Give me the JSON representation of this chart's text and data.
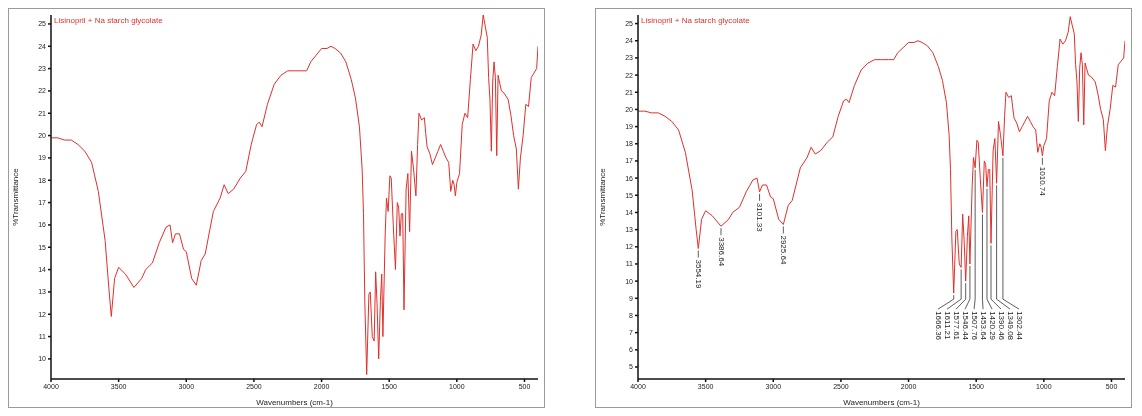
{
  "chart_data": [
    {
      "type": "line",
      "title": "Lisinopril + Na starch glycolate",
      "xlabel": "Wavenumbers (cm-1)",
      "ylabel": "%Transmittance",
      "x": [
        4000,
        3950,
        3900,
        3850,
        3800,
        3750,
        3700,
        3650,
        3600,
        3570,
        3554.19,
        3530,
        3500,
        3450,
        3386.64,
        3330,
        3300,
        3250,
        3200,
        3150,
        3120,
        3101.33,
        3080,
        3050,
        3020,
        3000,
        2960,
        2925.64,
        2890,
        2860,
        2800,
        2750,
        2720,
        2690,
        2650,
        2600,
        2560,
        2520,
        2480,
        2460,
        2440,
        2400,
        2350,
        2300,
        2250,
        2200,
        2150,
        2110,
        2080,
        2040,
        2000,
        1960,
        1930,
        1900,
        1860,
        1820,
        1780,
        1750,
        1720,
        1700,
        1690,
        1680,
        1666.36,
        1650,
        1640,
        1625,
        1611.21,
        1600,
        1590,
        1577.61,
        1565,
        1555,
        1546.44,
        1530,
        1520,
        1507.76,
        1495,
        1485,
        1470,
        1453.64,
        1440,
        1430,
        1420.29,
        1410,
        1400,
        1390.46,
        1375,
        1362,
        1349.08,
        1335,
        1320,
        1302.44,
        1290,
        1280,
        1260,
        1240,
        1230,
        1220,
        1200,
        1180,
        1160,
        1140,
        1120,
        1100,
        1080,
        1060,
        1045,
        1030,
        1020,
        1010.74,
        1000,
        980,
        960,
        940,
        920,
        900,
        880,
        860,
        840,
        820,
        805,
        790,
        775,
        765,
        755,
        745,
        735,
        725,
        715,
        705,
        695,
        685,
        670,
        650,
        620,
        600,
        580,
        560,
        545,
        530,
        510,
        490,
        470,
        450,
        430,
        410,
        400
      ],
      "series": [
        {
          "color": "#e0302c",
          "values": [
            19.9,
            19.9,
            19.8,
            19.8,
            19.6,
            19.3,
            18.8,
            17.5,
            15.3,
            13.0,
            11.9,
            13.6,
            14.1,
            13.8,
            13.2,
            13.6,
            14.0,
            14.3,
            15.2,
            15.9,
            16.0,
            15.2,
            15.6,
            15.6,
            14.9,
            14.8,
            13.6,
            13.3,
            14.4,
            14.7,
            16.6,
            17.2,
            17.8,
            17.4,
            17.6,
            18.1,
            18.4,
            19.6,
            20.5,
            20.6,
            20.4,
            21.4,
            22.3,
            22.7,
            22.9,
            22.9,
            22.9,
            22.9,
            23.3,
            23.6,
            23.9,
            23.9,
            24.0,
            23.9,
            23.7,
            23.3,
            22.5,
            21.7,
            20.4,
            18.5,
            16.5,
            12.5,
            9.3,
            12.9,
            13.0,
            11.0,
            10.8,
            13.9,
            12.5,
            10.0,
            12.6,
            13.8,
            11.0,
            15.5,
            17.2,
            16.6,
            18.2,
            18.1,
            16.0,
            14.0,
            17.0,
            16.8,
            15.5,
            16.5,
            16.5,
            12.2,
            17.6,
            18.3,
            15.7,
            19.3,
            18.5,
            17.3,
            19.6,
            21.0,
            20.7,
            20.8,
            20.1,
            19.5,
            19.2,
            18.7,
            19.0,
            19.3,
            19.6,
            19.3,
            19.0,
            18.8,
            17.5,
            18.0,
            17.8,
            17.3,
            17.9,
            18.3,
            20.5,
            21.0,
            20.8,
            22.5,
            24.1,
            23.8,
            24.0,
            24.5,
            25.4,
            24.9,
            24.4,
            22.6,
            21.6,
            19.3,
            22.4,
            23.3,
            22.6,
            19.1,
            22.7,
            22.4,
            22.0,
            21.9,
            21.6,
            20.9,
            20.0,
            19.4,
            17.6,
            19.0,
            20.0,
            21.4,
            21.3,
            22.6,
            22.8,
            23.0,
            24.0
          ]
        }
      ],
      "xlim": [
        4000,
        400
      ],
      "xticks": [
        4000,
        3500,
        3000,
        2500,
        2000,
        1500,
        1000,
        500
      ],
      "ylim": [
        9.1,
        25.4
      ],
      "yticks": [
        10,
        11,
        12,
        13,
        14,
        15,
        16,
        17,
        18,
        19,
        20,
        21,
        22,
        23,
        24,
        25
      ]
    },
    {
      "type": "line",
      "title": "Lisinopril + Na starch glycolate",
      "xlabel": "Wavenumbers (cm-1)",
      "ylabel": "%Transmittance",
      "x": [
        4000,
        3950,
        3900,
        3850,
        3800,
        3750,
        3700,
        3650,
        3600,
        3570,
        3554.19,
        3530,
        3500,
        3450,
        3386.64,
        3330,
        3300,
        3250,
        3200,
        3150,
        3120,
        3101.33,
        3080,
        3050,
        3020,
        3000,
        2960,
        2925.64,
        2890,
        2860,
        2800,
        2750,
        2720,
        2690,
        2650,
        2600,
        2560,
        2520,
        2480,
        2460,
        2440,
        2400,
        2350,
        2300,
        2250,
        2200,
        2150,
        2110,
        2080,
        2040,
        2000,
        1960,
        1930,
        1900,
        1860,
        1820,
        1780,
        1750,
        1720,
        1700,
        1690,
        1680,
        1666.36,
        1650,
        1640,
        1625,
        1611.21,
        1600,
        1590,
        1577.61,
        1565,
        1555,
        1546.44,
        1530,
        1520,
        1507.76,
        1495,
        1485,
        1470,
        1453.64,
        1440,
        1430,
        1420.29,
        1410,
        1400,
        1390.46,
        1375,
        1362,
        1349.08,
        1335,
        1320,
        1302.44,
        1290,
        1280,
        1260,
        1240,
        1230,
        1220,
        1200,
        1180,
        1160,
        1140,
        1120,
        1100,
        1080,
        1060,
        1045,
        1030,
        1020,
        1010.74,
        1000,
        980,
        960,
        940,
        920,
        900,
        880,
        860,
        840,
        820,
        805,
        790,
        775,
        765,
        755,
        745,
        735,
        725,
        715,
        705,
        695,
        685,
        670,
        650,
        620,
        600,
        580,
        560,
        545,
        530,
        510,
        490,
        470,
        450,
        430,
        410,
        400
      ],
      "series": [
        {
          "color": "#e0302c",
          "values": [
            19.9,
            19.9,
            19.8,
            19.8,
            19.6,
            19.3,
            18.8,
            17.5,
            15.3,
            13.0,
            11.9,
            13.6,
            14.1,
            13.8,
            13.2,
            13.6,
            14.0,
            14.3,
            15.2,
            15.9,
            16.0,
            15.2,
            15.6,
            15.6,
            14.9,
            14.8,
            13.6,
            13.3,
            14.4,
            14.7,
            16.6,
            17.2,
            17.8,
            17.4,
            17.6,
            18.1,
            18.4,
            19.6,
            20.5,
            20.6,
            20.4,
            21.4,
            22.3,
            22.7,
            22.9,
            22.9,
            22.9,
            22.9,
            23.3,
            23.6,
            23.9,
            23.9,
            24.0,
            23.9,
            23.7,
            23.3,
            22.5,
            21.7,
            20.4,
            18.5,
            16.5,
            12.5,
            9.3,
            12.9,
            13.0,
            11.0,
            10.8,
            13.9,
            12.5,
            10.0,
            12.6,
            13.8,
            11.0,
            15.5,
            17.2,
            16.6,
            18.2,
            18.1,
            16.0,
            14.0,
            17.0,
            16.8,
            15.5,
            16.5,
            16.5,
            12.2,
            17.6,
            18.3,
            15.7,
            19.3,
            18.5,
            17.3,
            19.6,
            21.0,
            20.7,
            20.8,
            20.1,
            19.5,
            19.2,
            18.7,
            19.0,
            19.3,
            19.6,
            19.3,
            19.0,
            18.8,
            17.5,
            18.0,
            17.8,
            17.3,
            17.9,
            18.3,
            20.5,
            21.0,
            20.8,
            22.5,
            24.1,
            23.8,
            24.0,
            24.5,
            25.4,
            24.9,
            24.4,
            22.6,
            21.6,
            19.3,
            22.4,
            23.3,
            22.6,
            19.1,
            22.7,
            22.4,
            22.0,
            21.9,
            21.6,
            20.9,
            20.0,
            19.4,
            17.6,
            19.0,
            20.0,
            21.4,
            21.3,
            22.6,
            22.8,
            23.0,
            24.0
          ]
        }
      ],
      "xlim": [
        4000,
        400
      ],
      "xticks": [
        4000,
        3500,
        3000,
        2500,
        2000,
        1500,
        1000,
        500
      ],
      "ylim": [
        4.3,
        25.5
      ],
      "yticks": [
        5,
        6,
        7,
        8,
        9,
        10,
        11,
        12,
        13,
        14,
        15,
        16,
        17,
        18,
        19,
        20,
        21,
        22,
        23,
        24,
        25
      ],
      "annotations": [
        {
          "text": "3554.19",
          "x": 3554.19,
          "y": 11.9
        },
        {
          "text": "3386.64",
          "x": 3386.64,
          "y": 13.2
        },
        {
          "text": "3101.33",
          "x": 3101.33,
          "y": 15.2
        },
        {
          "text": "2925.64",
          "x": 2925.64,
          "y": 13.3
        },
        {
          "text": "1666.36",
          "x": 1666.36,
          "y": 9.3
        },
        {
          "text": "1611.21",
          "x": 1611.21,
          "y": 10.8
        },
        {
          "text": "1577.61",
          "x": 1577.61,
          "y": 10.0
        },
        {
          "text": "1546.44",
          "x": 1546.44,
          "y": 11.0
        },
        {
          "text": "1507.76",
          "x": 1507.76,
          "y": 16.6
        },
        {
          "text": "1453.64",
          "x": 1453.64,
          "y": 14.0
        },
        {
          "text": "1420.29",
          "x": 1420.29,
          "y": 15.5
        },
        {
          "text": "1390.46",
          "x": 1390.46,
          "y": 12.2
        },
        {
          "text": "1349.08",
          "x": 1349.08,
          "y": 15.7
        },
        {
          "text": "1302.44",
          "x": 1302.44,
          "y": 17.3
        },
        {
          "text": "1010.74",
          "x": 1010.74,
          "y": 17.3
        }
      ]
    }
  ]
}
